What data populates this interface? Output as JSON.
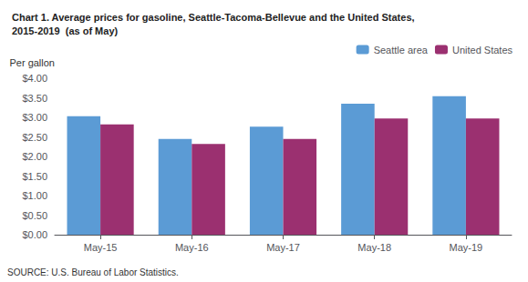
{
  "chart_data": {
    "type": "bar",
    "title": "Chart 1. Average prices for gasoline, Seattle-Tacoma-Bellevue and the United States,\n2015-2019  (as of May)",
    "ylabel": "Per gallon",
    "categories": [
      "May-15",
      "May-16",
      "May-17",
      "May-18",
      "May-19"
    ],
    "series": [
      {
        "name": "Seattle area",
        "color": "#5B9BD5",
        "values": [
          3.03,
          2.45,
          2.76,
          3.35,
          3.54
        ]
      },
      {
        "name": "United States",
        "color": "#9B3070",
        "values": [
          2.82,
          2.32,
          2.45,
          2.97,
          2.97
        ]
      }
    ],
    "ylim": [
      0,
      4.0
    ],
    "yticks": [
      {
        "value": 0.0,
        "label": "$0.00"
      },
      {
        "value": 0.5,
        "label": "$0.50"
      },
      {
        "value": 1.0,
        "label": "$1.00"
      },
      {
        "value": 1.5,
        "label": "$1.50"
      },
      {
        "value": 2.0,
        "label": "$2.00"
      },
      {
        "value": 2.5,
        "label": "$2.50"
      },
      {
        "value": 3.0,
        "label": "$3.00"
      },
      {
        "value": 3.5,
        "label": "$3.50"
      },
      {
        "value": 4.0,
        "label": "$4.00"
      }
    ],
    "annotations": [
      "SOURCE: U.S. Bureau of Labor Statistics."
    ],
    "grid": false,
    "legend": "top"
  }
}
